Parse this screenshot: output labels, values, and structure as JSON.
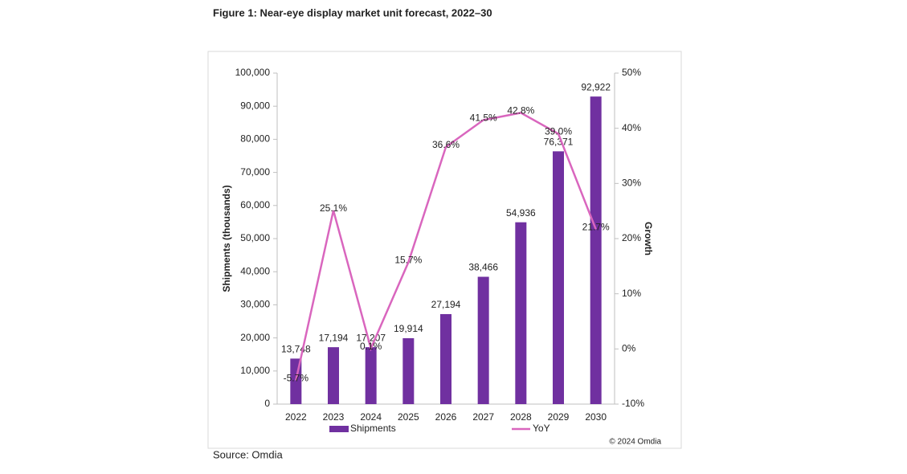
{
  "title": "Figure 1: Near-eye display market unit forecast, 2022–30",
  "source": "Source: Omdia",
  "copyright": "© 2024 Omdia",
  "chart_data": {
    "type": "combo",
    "categories": [
      "2022",
      "2023",
      "2024",
      "2025",
      "2026",
      "2027",
      "2028",
      "2029",
      "2030"
    ],
    "series": [
      {
        "name": "Shipments",
        "type": "bar",
        "color": "#7030a0",
        "values": [
          13748,
          17194,
          17207,
          19914,
          27194,
          38466,
          54936,
          76371,
          92922
        ],
        "value_labels": [
          "13,748",
          "17,194",
          "17,207",
          "19,914",
          "27,194",
          "38,466",
          "54,936",
          "76,371",
          "92,922"
        ]
      },
      {
        "name": "YoY",
        "type": "line",
        "axis": "y2",
        "color": "#d966be",
        "values": [
          -5.7,
          25.1,
          0.1,
          15.7,
          36.6,
          41.5,
          42.8,
          39.0,
          21.7
        ],
        "value_labels": [
          "-5.7%",
          "25.1%",
          "0.1%",
          "15.7%",
          "36.6%",
          "41.5%",
          "42.8%",
          "39.0%",
          "21.7%"
        ]
      }
    ],
    "y_label": "Shipments (thousands)",
    "y2_label": "Growth",
    "ylim": [
      0,
      100000
    ],
    "yticks": [
      0,
      {
        "value": 10000,
        "label": "10,000"
      },
      {
        "value": 20000,
        "label": "20,000"
      },
      {
        "value": 30000,
        "label": "30,000"
      },
      {
        "value": 40000,
        "label": "40,000"
      },
      {
        "value": 50000,
        "label": "50,000"
      },
      {
        "value": 60000,
        "label": "60,000"
      },
      {
        "value": 70000,
        "label": "70,000"
      },
      {
        "value": 80000,
        "label": "80,000"
      },
      {
        "value": 90000,
        "label": "90,000"
      },
      {
        "value": 100000,
        "label": "100,000"
      }
    ],
    "y2lim": [
      -10,
      50
    ],
    "y2ticks": [
      {
        "value": -10,
        "label": "-10%"
      },
      {
        "value": 0,
        "label": "0%"
      },
      {
        "value": 10,
        "label": "10%"
      },
      {
        "value": 20,
        "label": "20%"
      },
      {
        "value": 30,
        "label": "30%"
      },
      {
        "value": 40,
        "label": "40%"
      },
      {
        "value": 50,
        "label": "50%"
      }
    ],
    "grid": false,
    "legend": "bottom"
  }
}
